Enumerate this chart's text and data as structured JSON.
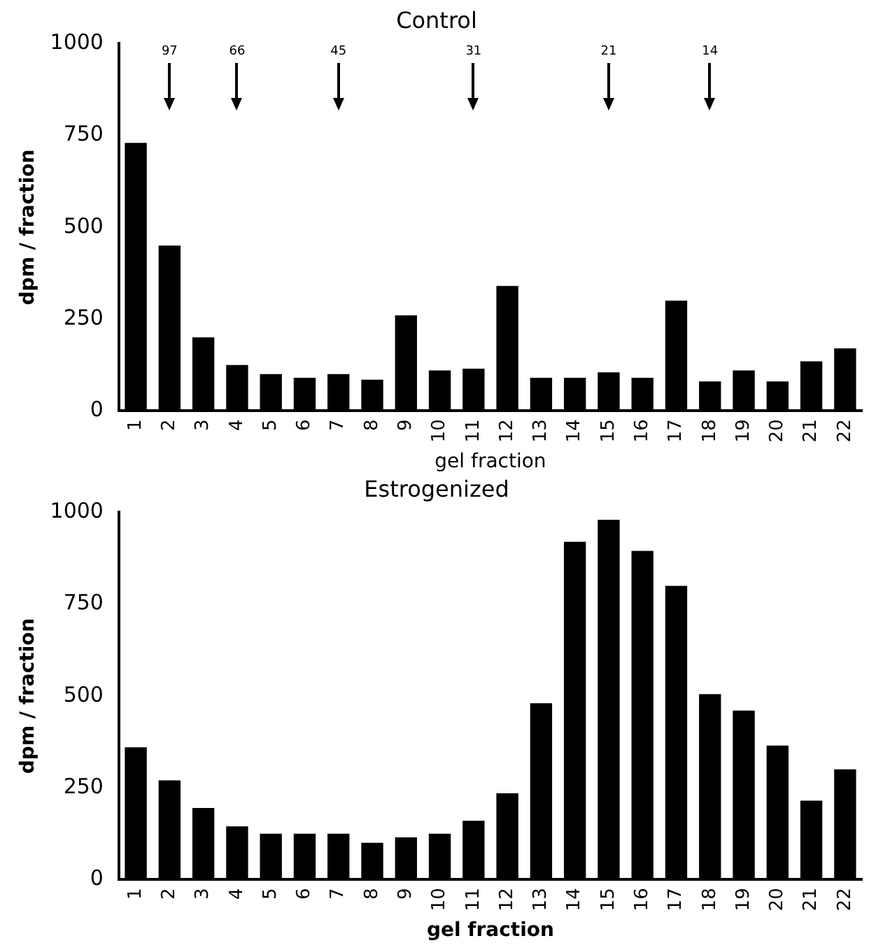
{
  "chart_data": [
    {
      "type": "bar",
      "title": "Control",
      "xlabel": "gel fraction",
      "ylabel": "dpm / fraction",
      "categories": [
        "1",
        "2",
        "3",
        "4",
        "5",
        "6",
        "7",
        "8",
        "9",
        "10",
        "11",
        "12",
        "13",
        "14",
        "15",
        "16",
        "17",
        "18",
        "19",
        "20",
        "21",
        "22"
      ],
      "values": [
        730,
        450,
        200,
        125,
        100,
        90,
        100,
        85,
        260,
        110,
        115,
        340,
        90,
        90,
        105,
        90,
        300,
        80,
        110,
        80,
        135,
        170
      ],
      "color": "#000000",
      "ylim": [
        0,
        1000
      ],
      "yticks": [
        0,
        250,
        500,
        750,
        1000
      ],
      "annotations": [
        {
          "text": "97",
          "x": "2"
        },
        {
          "text": "66",
          "x": "4"
        },
        {
          "text": "45",
          "x": "7"
        },
        {
          "text": "31",
          "x": "11"
        },
        {
          "text": "21",
          "x": "15"
        },
        {
          "text": "14",
          "x": "18"
        }
      ]
    },
    {
      "type": "bar",
      "title": "Estrogenized",
      "xlabel": "gel fraction",
      "ylabel": "dpm / fraction",
      "categories": [
        "1",
        "2",
        "3",
        "4",
        "5",
        "6",
        "7",
        "8",
        "9",
        "10",
        "11",
        "12",
        "13",
        "14",
        "15",
        "16",
        "17",
        "18",
        "19",
        "20",
        "21",
        "22"
      ],
      "values": [
        360,
        270,
        195,
        145,
        125,
        125,
        125,
        100,
        115,
        125,
        160,
        235,
        480,
        920,
        980,
        895,
        800,
        505,
        460,
        365,
        215,
        300
      ],
      "color": "#000000",
      "ylim": [
        0,
        1000
      ],
      "yticks": [
        0,
        250,
        500,
        750,
        1000
      ]
    }
  ]
}
